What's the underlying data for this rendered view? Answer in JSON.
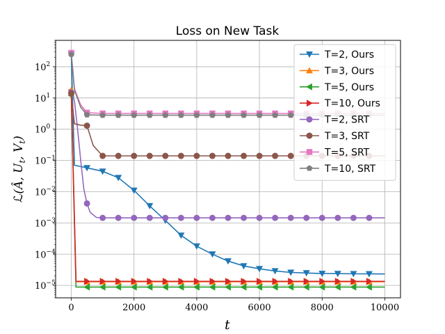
{
  "chart_data": {
    "type": "line",
    "title": "Loss on New Task",
    "xlabel": "t",
    "ylabel": "L(Â, U_t, V_t)",
    "xlim": [
      -500,
      10500
    ],
    "ylim": [
      4e-06,
      700
    ],
    "yscale": "log",
    "grid": true,
    "legend_position": "top-right",
    "x_ticks": [
      0,
      2000,
      4000,
      6000,
      8000,
      10000
    ],
    "x_tick_labels": [
      "0",
      "2000",
      "4000",
      "6000",
      "8000",
      "10000"
    ],
    "y_ticks": [
      1e-05,
      0.0001,
      0.001,
      0.01,
      0.1,
      1,
      10,
      100
    ],
    "y_tick_labels": [
      [
        "10",
        "−5"
      ],
      [
        "10",
        "−4"
      ],
      [
        "10",
        "−3"
      ],
      [
        "10",
        "−2"
      ],
      [
        "10",
        "−1"
      ],
      [
        "10",
        "0"
      ],
      [
        "10",
        "1"
      ],
      [
        "10",
        "2"
      ]
    ],
    "series": [
      {
        "name": "T=2, Ours",
        "color": "#1f77b4",
        "marker": "triangle-down",
        "x": [
          0,
          100,
          500,
          1000,
          1500,
          2000,
          2500,
          3000,
          3500,
          4000,
          4500,
          5000,
          5500,
          6000,
          6500,
          7000,
          7500,
          8000,
          8500,
          9000,
          9500,
          10000
        ],
        "y": [
          250,
          0.07,
          0.058,
          0.045,
          0.028,
          0.011,
          0.0035,
          0.0012,
          0.0004,
          0.00018,
          0.0001,
          6e-05,
          4.2e-05,
          3.4e-05,
          2.9e-05,
          2.6e-05,
          2.5e-05,
          2.4e-05,
          2.38e-05,
          2.35e-05,
          2.33e-05,
          2.32e-05
        ]
      },
      {
        "name": "T=3, Ours",
        "color": "#ff7f0e",
        "marker": "triangle-up",
        "x": [
          0,
          150,
          500,
          1000,
          1500,
          2000,
          2500,
          3000,
          3500,
          4000,
          4500,
          5000,
          5500,
          6000,
          6500,
          7000,
          7500,
          8000,
          8500,
          9000,
          9500,
          10000
        ],
        "y": [
          18,
          1.3e-05,
          1.3e-05,
          1.3e-05,
          1.3e-05,
          1.3e-05,
          1.3e-05,
          1.3e-05,
          1.3e-05,
          1.3e-05,
          1.3e-05,
          1.3e-05,
          1.3e-05,
          1.3e-05,
          1.3e-05,
          1.3e-05,
          1.3e-05,
          1.3e-05,
          1.3e-05,
          1.3e-05,
          1.3e-05,
          1.3e-05
        ]
      },
      {
        "name": "T=5, Ours",
        "color": "#2ca02c",
        "marker": "triangle-left",
        "x": [
          0,
          150,
          500,
          1000,
          1500,
          2000,
          2500,
          3000,
          3500,
          4000,
          4500,
          5000,
          5500,
          6000,
          6500,
          7000,
          7500,
          8000,
          8500,
          9000,
          9500,
          10000
        ],
        "y": [
          12,
          8.8e-06,
          8.8e-06,
          8.8e-06,
          8.8e-06,
          8.8e-06,
          8.8e-06,
          8.8e-06,
          8.8e-06,
          8.8e-06,
          8.8e-06,
          8.8e-06,
          8.8e-06,
          8.8e-06,
          8.8e-06,
          8.8e-06,
          8.8e-06,
          8.8e-06,
          8.8e-06,
          8.8e-06,
          8.8e-06,
          8.8e-06
        ]
      },
      {
        "name": "T=10, Ours",
        "color": "#d62728",
        "marker": "triangle-right",
        "x": [
          0,
          150,
          500,
          1000,
          1500,
          2000,
          2500,
          3000,
          3500,
          4000,
          4500,
          5000,
          5500,
          6000,
          6500,
          7000,
          7500,
          8000,
          8500,
          9000,
          9500,
          10000
        ],
        "y": [
          15,
          1.35e-05,
          1.35e-05,
          1.35e-05,
          1.35e-05,
          1.35e-05,
          1.35e-05,
          1.35e-05,
          1.35e-05,
          1.35e-05,
          1.35e-05,
          1.35e-05,
          1.35e-05,
          1.35e-05,
          1.35e-05,
          1.35e-05,
          1.35e-05,
          1.35e-05,
          1.35e-05,
          1.35e-05,
          1.35e-05,
          1.35e-05
        ]
      },
      {
        "name": "T=2, SRT",
        "color": "#9467bd",
        "marker": "circle",
        "x": [
          0,
          100,
          200,
          300,
          400,
          500,
          600,
          800,
          1000,
          1500,
          2000,
          2500,
          3000,
          3500,
          4000,
          4500,
          5000,
          5500,
          6000,
          6500,
          7000,
          7500,
          8000,
          8500,
          9000,
          9500,
          10000
        ],
        "y": [
          15,
          8,
          1,
          0.1,
          0.012,
          0.0042,
          0.0022,
          0.0015,
          0.00145,
          0.00145,
          0.00145,
          0.00145,
          0.00145,
          0.00145,
          0.00145,
          0.00145,
          0.00145,
          0.00145,
          0.00145,
          0.00145,
          0.00145,
          0.00145,
          0.00145,
          0.00145,
          0.00145,
          0.00145,
          0.00145
        ]
      },
      {
        "name": "T=3, SRT",
        "color": "#8c564b",
        "marker": "circle",
        "x": [
          0,
          100,
          300,
          500,
          700,
          1000,
          1500,
          2000,
          2500,
          3000,
          3500,
          4000,
          4500,
          5000,
          5500,
          6000,
          6500,
          7000,
          7500,
          8000,
          8500,
          9000,
          9500,
          10000
        ],
        "y": [
          14,
          1.5,
          1.35,
          1.3,
          0.3,
          0.14,
          0.14,
          0.14,
          0.14,
          0.14,
          0.14,
          0.14,
          0.14,
          0.14,
          0.14,
          0.14,
          0.14,
          0.14,
          0.14,
          0.14,
          0.14,
          0.14,
          0.14,
          0.14
        ]
      },
      {
        "name": "T=5, SRT",
        "color": "#e377c2",
        "marker": "square",
        "x": [
          0,
          100,
          300,
          500,
          1000,
          1500,
          2000,
          2500,
          3000,
          3500,
          4000,
          4500,
          5000,
          5500,
          6000,
          6500,
          7000,
          7500,
          8000,
          8500,
          9000,
          9500,
          10000
        ],
        "y": [
          280,
          20,
          6,
          3.4,
          3.2,
          3.2,
          3.2,
          3.2,
          3.2,
          3.2,
          3.2,
          3.2,
          3.2,
          3.2,
          3.2,
          3.2,
          3.2,
          3.2,
          3.2,
          3.2,
          3.2,
          3.2,
          3.2
        ]
      },
      {
        "name": "T=10, SRT",
        "color": "#7f7f7f",
        "marker": "pentagon",
        "x": [
          0,
          100,
          300,
          500,
          1000,
          1500,
          2000,
          2500,
          3000,
          3500,
          4000,
          4500,
          5000,
          5500,
          6000,
          6500,
          7000,
          7500,
          8000,
          8500,
          9000,
          9500,
          10000
        ],
        "y": [
          250,
          18,
          5,
          2.9,
          2.8,
          2.8,
          2.8,
          2.8,
          2.8,
          2.8,
          2.8,
          2.8,
          2.8,
          2.8,
          2.8,
          2.8,
          2.8,
          2.8,
          2.8,
          2.8,
          2.8,
          2.8,
          2.8
        ]
      }
    ]
  }
}
